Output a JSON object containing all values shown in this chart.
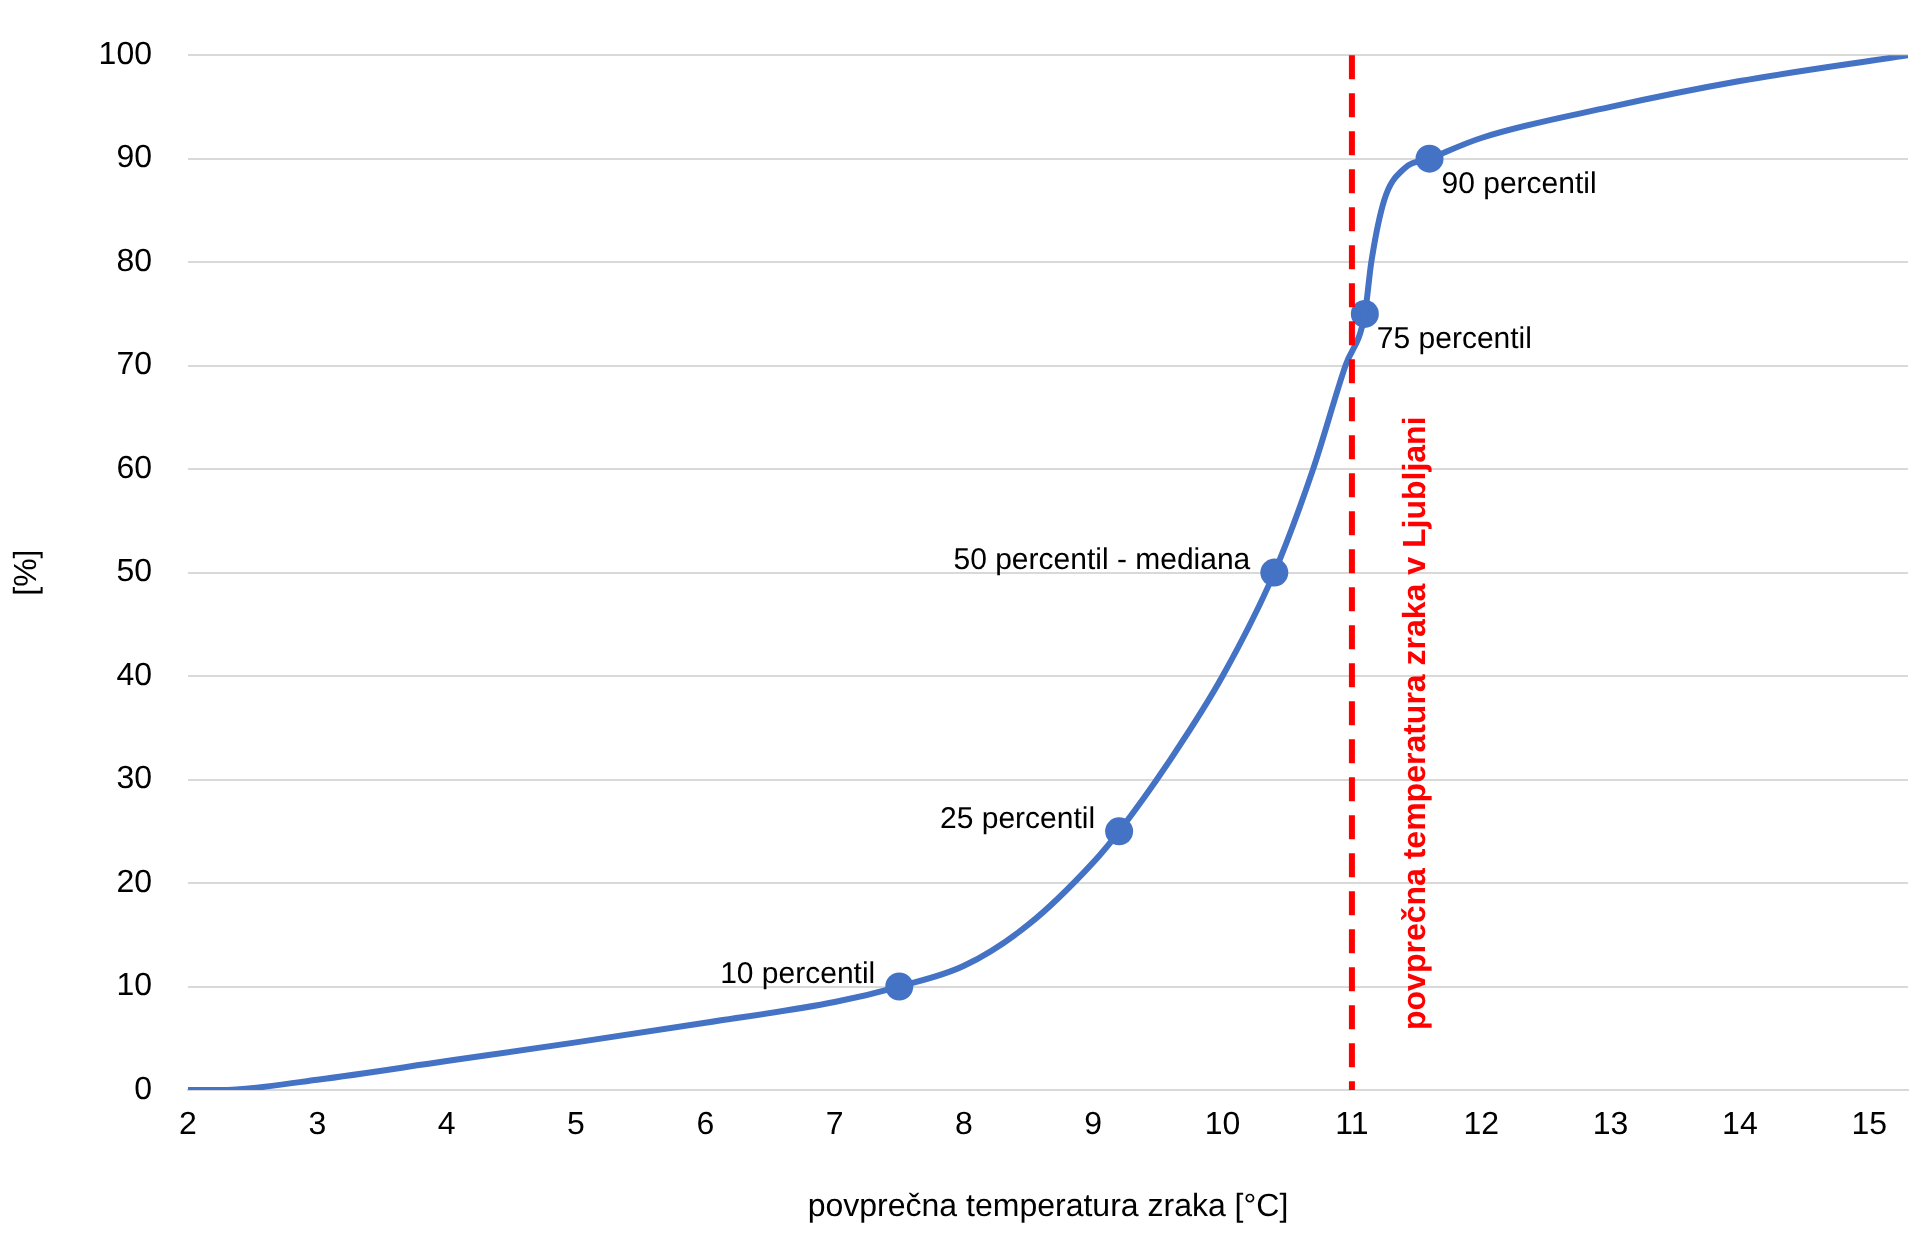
{
  "chart_data": {
    "type": "line",
    "xlabel": "povprečna temperatura zraka [°C]",
    "ylabel": "[%]",
    "xlim": [
      2,
      15.3
    ],
    "xticks": [
      2,
      3,
      4,
      5,
      6,
      7,
      8,
      9,
      10,
      11,
      12,
      13,
      14,
      15
    ],
    "ylim": [
      0,
      100
    ],
    "yticks": [
      0,
      10,
      20,
      30,
      40,
      50,
      60,
      70,
      80,
      90,
      100
    ],
    "grid": "y",
    "legend": false,
    "series": [
      {
        "marker": "none",
        "color": "#4472c4",
        "x": [
          2,
          2.25,
          3,
          4,
          5,
          6,
          7,
          7.5,
          8,
          8.5,
          9,
          9.2,
          9.6,
          10,
          10.4,
          10.7,
          10.95,
          11.1,
          11.15,
          11.25,
          11.4,
          11.6,
          12,
          13,
          14,
          15.3
        ],
        "values": [
          0,
          0,
          1,
          2.8,
          4.6,
          6.5,
          8.5,
          10,
          12,
          16,
          22,
          25,
          32,
          40,
          50,
          60,
          70,
          75,
          80,
          86,
          89,
          90,
          92,
          95,
          97.5,
          100
        ]
      },
      {
        "type": "scatter",
        "marker": "circle",
        "color": "#4472c4",
        "x": [
          7.5,
          9.2,
          10.4,
          11.1,
          11.6
        ],
        "values": [
          10,
          25,
          50,
          75,
          90
        ]
      }
    ],
    "annotations": [
      {
        "text": "10 percentil",
        "x": 7.5,
        "y": 10
      },
      {
        "text": "25 percentil",
        "x": 9.2,
        "y": 25
      },
      {
        "text": "50 percentil - mediana",
        "x": 10.4,
        "y": 50
      },
      {
        "text": "75 percentil",
        "x": 11.1,
        "y": 75
      },
      {
        "text": "90 percentil",
        "x": 11.6,
        "y": 90
      }
    ],
    "ref_lines": [
      {
        "axis": "x",
        "value": 11,
        "label": "povprečna temperatura zraka v Ljubljani",
        "color": "#ff0000",
        "line_style": "dashed"
      }
    ]
  }
}
